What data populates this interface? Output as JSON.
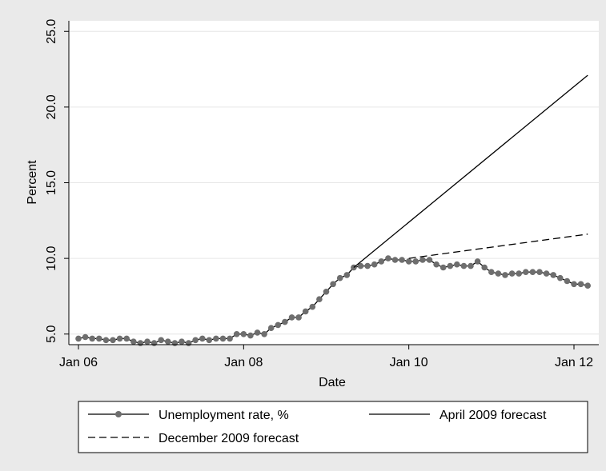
{
  "chart_data": {
    "type": "line",
    "title": "",
    "xlabel": "Date",
    "ylabel": "Percent",
    "xlim": [
      "2006-01",
      "2012-04"
    ],
    "ylim": [
      4.3,
      25.7
    ],
    "x_ticks": [
      {
        "date": "2006-01",
        "label": "Jan 06"
      },
      {
        "date": "2008-01",
        "label": "Jan 08"
      },
      {
        "date": "2010-01",
        "label": "Jan 10"
      },
      {
        "date": "2012-01",
        "label": "Jan 12"
      }
    ],
    "y_ticks": [
      {
        "value": 5,
        "label": "5.0"
      },
      {
        "value": 10,
        "label": "10.0"
      },
      {
        "value": 15,
        "label": "15.0"
      },
      {
        "value": 20,
        "label": "20.0"
      },
      {
        "value": 25,
        "label": "25.0"
      }
    ],
    "grid": true,
    "legend_position": "bottom",
    "series": [
      {
        "name": "Unemployment rate, %",
        "style": "solid-markers",
        "color": "#000000",
        "marker_color": "#6e6e6e",
        "points": [
          [
            "2006-01",
            4.7
          ],
          [
            "2006-02",
            4.8
          ],
          [
            "2006-03",
            4.7
          ],
          [
            "2006-04",
            4.7
          ],
          [
            "2006-05",
            4.6
          ],
          [
            "2006-06",
            4.6
          ],
          [
            "2006-07",
            4.7
          ],
          [
            "2006-08",
            4.7
          ],
          [
            "2006-09",
            4.5
          ],
          [
            "2006-10",
            4.4
          ],
          [
            "2006-11",
            4.5
          ],
          [
            "2006-12",
            4.4
          ],
          [
            "2007-01",
            4.6
          ],
          [
            "2007-02",
            4.5
          ],
          [
            "2007-03",
            4.4
          ],
          [
            "2007-04",
            4.5
          ],
          [
            "2007-05",
            4.4
          ],
          [
            "2007-06",
            4.6
          ],
          [
            "2007-07",
            4.7
          ],
          [
            "2007-08",
            4.6
          ],
          [
            "2007-09",
            4.7
          ],
          [
            "2007-10",
            4.7
          ],
          [
            "2007-11",
            4.7
          ],
          [
            "2007-12",
            5.0
          ],
          [
            "2008-01",
            5.0
          ],
          [
            "2008-02",
            4.9
          ],
          [
            "2008-03",
            5.1
          ],
          [
            "2008-04",
            5.0
          ],
          [
            "2008-05",
            5.4
          ],
          [
            "2008-06",
            5.6
          ],
          [
            "2008-07",
            5.8
          ],
          [
            "2008-08",
            6.1
          ],
          [
            "2008-09",
            6.1
          ],
          [
            "2008-10",
            6.5
          ],
          [
            "2008-11",
            6.8
          ],
          [
            "2008-12",
            7.3
          ],
          [
            "2009-01",
            7.8
          ],
          [
            "2009-02",
            8.3
          ],
          [
            "2009-03",
            8.7
          ],
          [
            "2009-04",
            8.9
          ],
          [
            "2009-05",
            9.4
          ],
          [
            "2009-06",
            9.5
          ],
          [
            "2009-07",
            9.5
          ],
          [
            "2009-08",
            9.6
          ],
          [
            "2009-09",
            9.8
          ],
          [
            "2009-10",
            10.0
          ],
          [
            "2009-11",
            9.9
          ],
          [
            "2009-12",
            9.9
          ],
          [
            "2010-01",
            9.8
          ],
          [
            "2010-02",
            9.8
          ],
          [
            "2010-03",
            9.9
          ],
          [
            "2010-04",
            9.9
          ],
          [
            "2010-05",
            9.6
          ],
          [
            "2010-06",
            9.4
          ],
          [
            "2010-07",
            9.5
          ],
          [
            "2010-08",
            9.6
          ],
          [
            "2010-09",
            9.5
          ],
          [
            "2010-10",
            9.5
          ],
          [
            "2010-11",
            9.8
          ],
          [
            "2010-12",
            9.4
          ],
          [
            "2011-01",
            9.1
          ],
          [
            "2011-02",
            9.0
          ],
          [
            "2011-03",
            8.9
          ],
          [
            "2011-04",
            9.0
          ],
          [
            "2011-05",
            9.0
          ],
          [
            "2011-06",
            9.1
          ],
          [
            "2011-07",
            9.1
          ],
          [
            "2011-08",
            9.1
          ],
          [
            "2011-09",
            9.0
          ],
          [
            "2011-10",
            8.9
          ],
          [
            "2011-11",
            8.7
          ],
          [
            "2011-12",
            8.5
          ],
          [
            "2012-01",
            8.3
          ],
          [
            "2012-02",
            8.3
          ],
          [
            "2012-03",
            8.2
          ]
        ]
      },
      {
        "name": "April 2009 forecast",
        "style": "solid",
        "color": "#000000",
        "points": [
          [
            "2009-05",
            9.4
          ],
          [
            "2012-03",
            22.1
          ]
        ]
      },
      {
        "name": "December 2009 forecast",
        "style": "dashed",
        "color": "#000000",
        "points": [
          [
            "2010-01",
            10.0
          ],
          [
            "2012-03",
            11.6
          ]
        ]
      }
    ]
  }
}
